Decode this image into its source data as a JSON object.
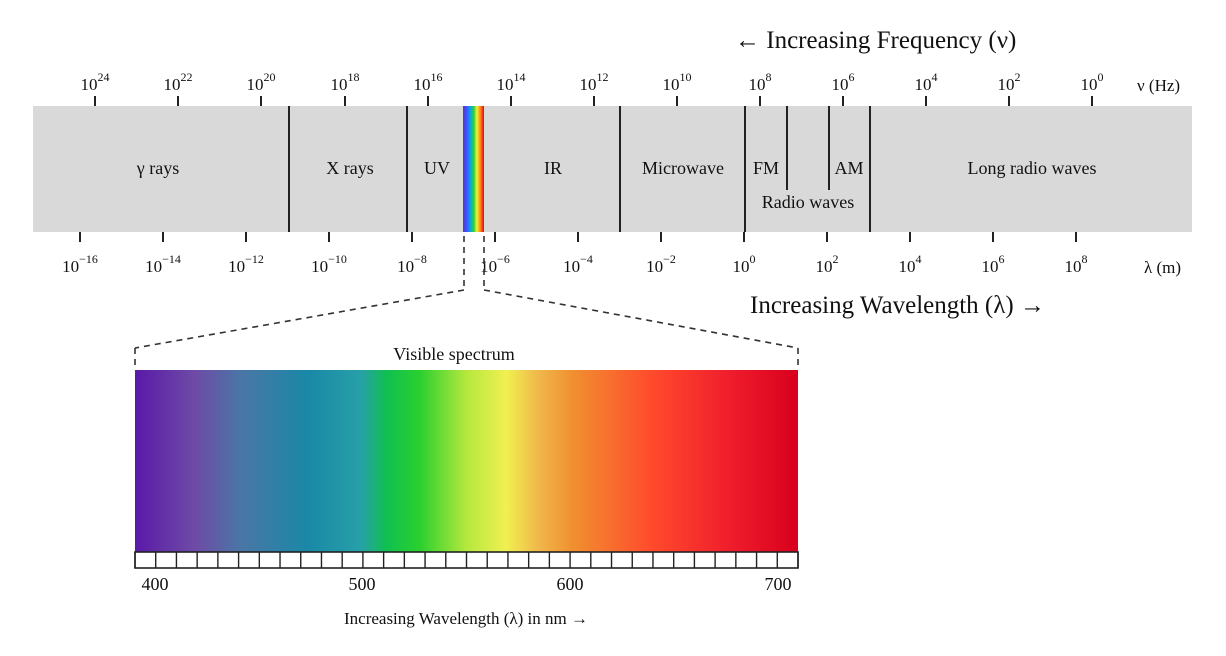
{
  "frequency_axis": {
    "title": "← Increasing Frequency (ν)",
    "unit": "ν (Hz)",
    "ticks": [
      {
        "base": "10",
        "exp": "24"
      },
      {
        "base": "10",
        "exp": "22"
      },
      {
        "base": "10",
        "exp": "20"
      },
      {
        "base": "10",
        "exp": "18"
      },
      {
        "base": "10",
        "exp": "16"
      },
      {
        "base": "10",
        "exp": "14"
      },
      {
        "base": "10",
        "exp": "12"
      },
      {
        "base": "10",
        "exp": "10"
      },
      {
        "base": "10",
        "exp": "8"
      },
      {
        "base": "10",
        "exp": "6"
      },
      {
        "base": "10",
        "exp": "4"
      },
      {
        "base": "10",
        "exp": "2"
      },
      {
        "base": "10",
        "exp": "0"
      }
    ]
  },
  "wavelength_axis": {
    "title": "Increasing Wavelength (λ) →",
    "unit": "λ (m)",
    "ticks": [
      {
        "base": "10",
        "exp": "−16"
      },
      {
        "base": "10",
        "exp": "−14"
      },
      {
        "base": "10",
        "exp": "−12"
      },
      {
        "base": "10",
        "exp": "−10"
      },
      {
        "base": "10",
        "exp": "−8"
      },
      {
        "base": "10",
        "exp": "−6"
      },
      {
        "base": "10",
        "exp": "−4"
      },
      {
        "base": "10",
        "exp": "−2"
      },
      {
        "base": "10",
        "exp": "0"
      },
      {
        "base": "10",
        "exp": "2"
      },
      {
        "base": "10",
        "exp": "4"
      },
      {
        "base": "10",
        "exp": "6"
      },
      {
        "base": "10",
        "exp": "8"
      }
    ]
  },
  "bands": [
    {
      "label": "γ rays"
    },
    {
      "label": "X rays"
    },
    {
      "label": "UV"
    },
    {
      "label": "IR"
    },
    {
      "label": "Microwave"
    },
    {
      "label": "FM"
    },
    {
      "label": "AM"
    },
    {
      "label": "Long radio waves"
    }
  ],
  "radio_label": "Radio waves",
  "visible": {
    "title": "Visible spectrum",
    "axis_labels": [
      "400",
      "500",
      "600",
      "700"
    ],
    "caption": "Increasing Wavelength (λ) in nm →"
  },
  "colors": {
    "band_fill": "#d9d9d9",
    "divider": "#222222",
    "text": "#111111"
  }
}
